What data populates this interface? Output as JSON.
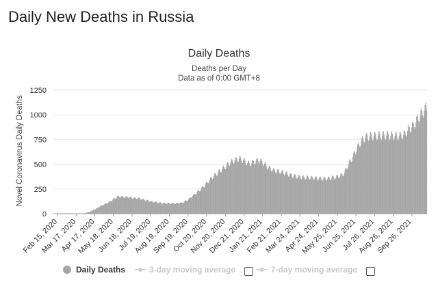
{
  "page": {
    "title": "Daily New Deaths in Russia"
  },
  "chart_data": {
    "type": "bar",
    "title": "Daily Deaths",
    "subtitle": "Deaths per Day",
    "subtitle2": "Data as of 0:00 GMT+8",
    "ylabel": "Novel Coronavirus Daily Deaths",
    "ylim": [
      0,
      1250
    ],
    "yticks": [
      0,
      250,
      500,
      750,
      1000,
      1250
    ],
    "grid": true,
    "color": "#a6a6a6",
    "x_start": "2020-02-15",
    "x_end": "2021-10-27",
    "xtick_labels": [
      "Feb 15, 2020",
      "Mar 17, 2020",
      "Apr 17, 2020",
      "May 18, 2020",
      "Jun 18, 2020",
      "Jul 19, 2020",
      "Aug 19, 2020",
      "Sep 19, 2020",
      "Oct 20, 2020",
      "Nov 20, 2020",
      "Dec 21, 2020",
      "Jan 21, 2021",
      "Feb 21, 2021",
      "Mar 24, 2021",
      "Apr 24, 2021",
      "May 25, 2021",
      "Jun 25, 2021",
      "Jul 26, 2021",
      "Aug 26, 2021",
      "Sep 26, 2021"
    ],
    "series": [
      {
        "name": "Daily Deaths",
        "points": [
          [
            "2020-02-15",
            0
          ],
          [
            "2020-03-25",
            0
          ],
          [
            "2020-04-05",
            3
          ],
          [
            "2020-04-15",
            20
          ],
          [
            "2020-04-25",
            50
          ],
          [
            "2020-05-05",
            85
          ],
          [
            "2020-05-15",
            110
          ],
          [
            "2020-05-25",
            150
          ],
          [
            "2020-06-01",
            175
          ],
          [
            "2020-06-10",
            170
          ],
          [
            "2020-06-18",
            168
          ],
          [
            "2020-06-25",
            160
          ],
          [
            "2020-07-05",
            155
          ],
          [
            "2020-07-15",
            140
          ],
          [
            "2020-07-25",
            125
          ],
          [
            "2020-08-05",
            115
          ],
          [
            "2020-08-15",
            105
          ],
          [
            "2020-08-25",
            105
          ],
          [
            "2020-09-05",
            105
          ],
          [
            "2020-09-15",
            110
          ],
          [
            "2020-09-25",
            140
          ],
          [
            "2020-10-05",
            190
          ],
          [
            "2020-10-15",
            240
          ],
          [
            "2020-10-25",
            300
          ],
          [
            "2020-11-05",
            370
          ],
          [
            "2020-11-15",
            420
          ],
          [
            "2020-11-25",
            470
          ],
          [
            "2020-12-05",
            520
          ],
          [
            "2020-12-12",
            540
          ],
          [
            "2020-12-20",
            555
          ],
          [
            "2020-12-27",
            535
          ],
          [
            "2021-01-05",
            500
          ],
          [
            "2021-01-12",
            520
          ],
          [
            "2021-01-20",
            540
          ],
          [
            "2021-01-27",
            520
          ],
          [
            "2021-02-05",
            470
          ],
          [
            "2021-02-15",
            435
          ],
          [
            "2021-02-25",
            425
          ],
          [
            "2021-03-05",
            410
          ],
          [
            "2021-03-15",
            390
          ],
          [
            "2021-03-25",
            375
          ],
          [
            "2021-04-05",
            365
          ],
          [
            "2021-04-15",
            365
          ],
          [
            "2021-04-25",
            360
          ],
          [
            "2021-05-05",
            355
          ],
          [
            "2021-05-15",
            355
          ],
          [
            "2021-05-25",
            365
          ],
          [
            "2021-06-05",
            380
          ],
          [
            "2021-06-12",
            410
          ],
          [
            "2021-06-18",
            490
          ],
          [
            "2021-06-25",
            560
          ],
          [
            "2021-07-02",
            650
          ],
          [
            "2021-07-10",
            730
          ],
          [
            "2021-07-17",
            770
          ],
          [
            "2021-07-25",
            785
          ],
          [
            "2021-08-05",
            785
          ],
          [
            "2021-08-15",
            790
          ],
          [
            "2021-08-25",
            790
          ],
          [
            "2021-09-05",
            785
          ],
          [
            "2021-09-12",
            785
          ],
          [
            "2021-09-20",
            800
          ],
          [
            "2021-09-27",
            850
          ],
          [
            "2021-10-05",
            890
          ],
          [
            "2021-10-12",
            960
          ],
          [
            "2021-10-19",
            1015
          ],
          [
            "2021-10-24",
            1050
          ],
          [
            "2021-10-27",
            1075
          ]
        ]
      }
    ]
  },
  "legend": {
    "items": [
      {
        "label": "Daily Deaths",
        "active": true
      },
      {
        "label": "3-day moving average",
        "active": false
      },
      {
        "label": "7-day moving average",
        "active": false
      }
    ]
  }
}
